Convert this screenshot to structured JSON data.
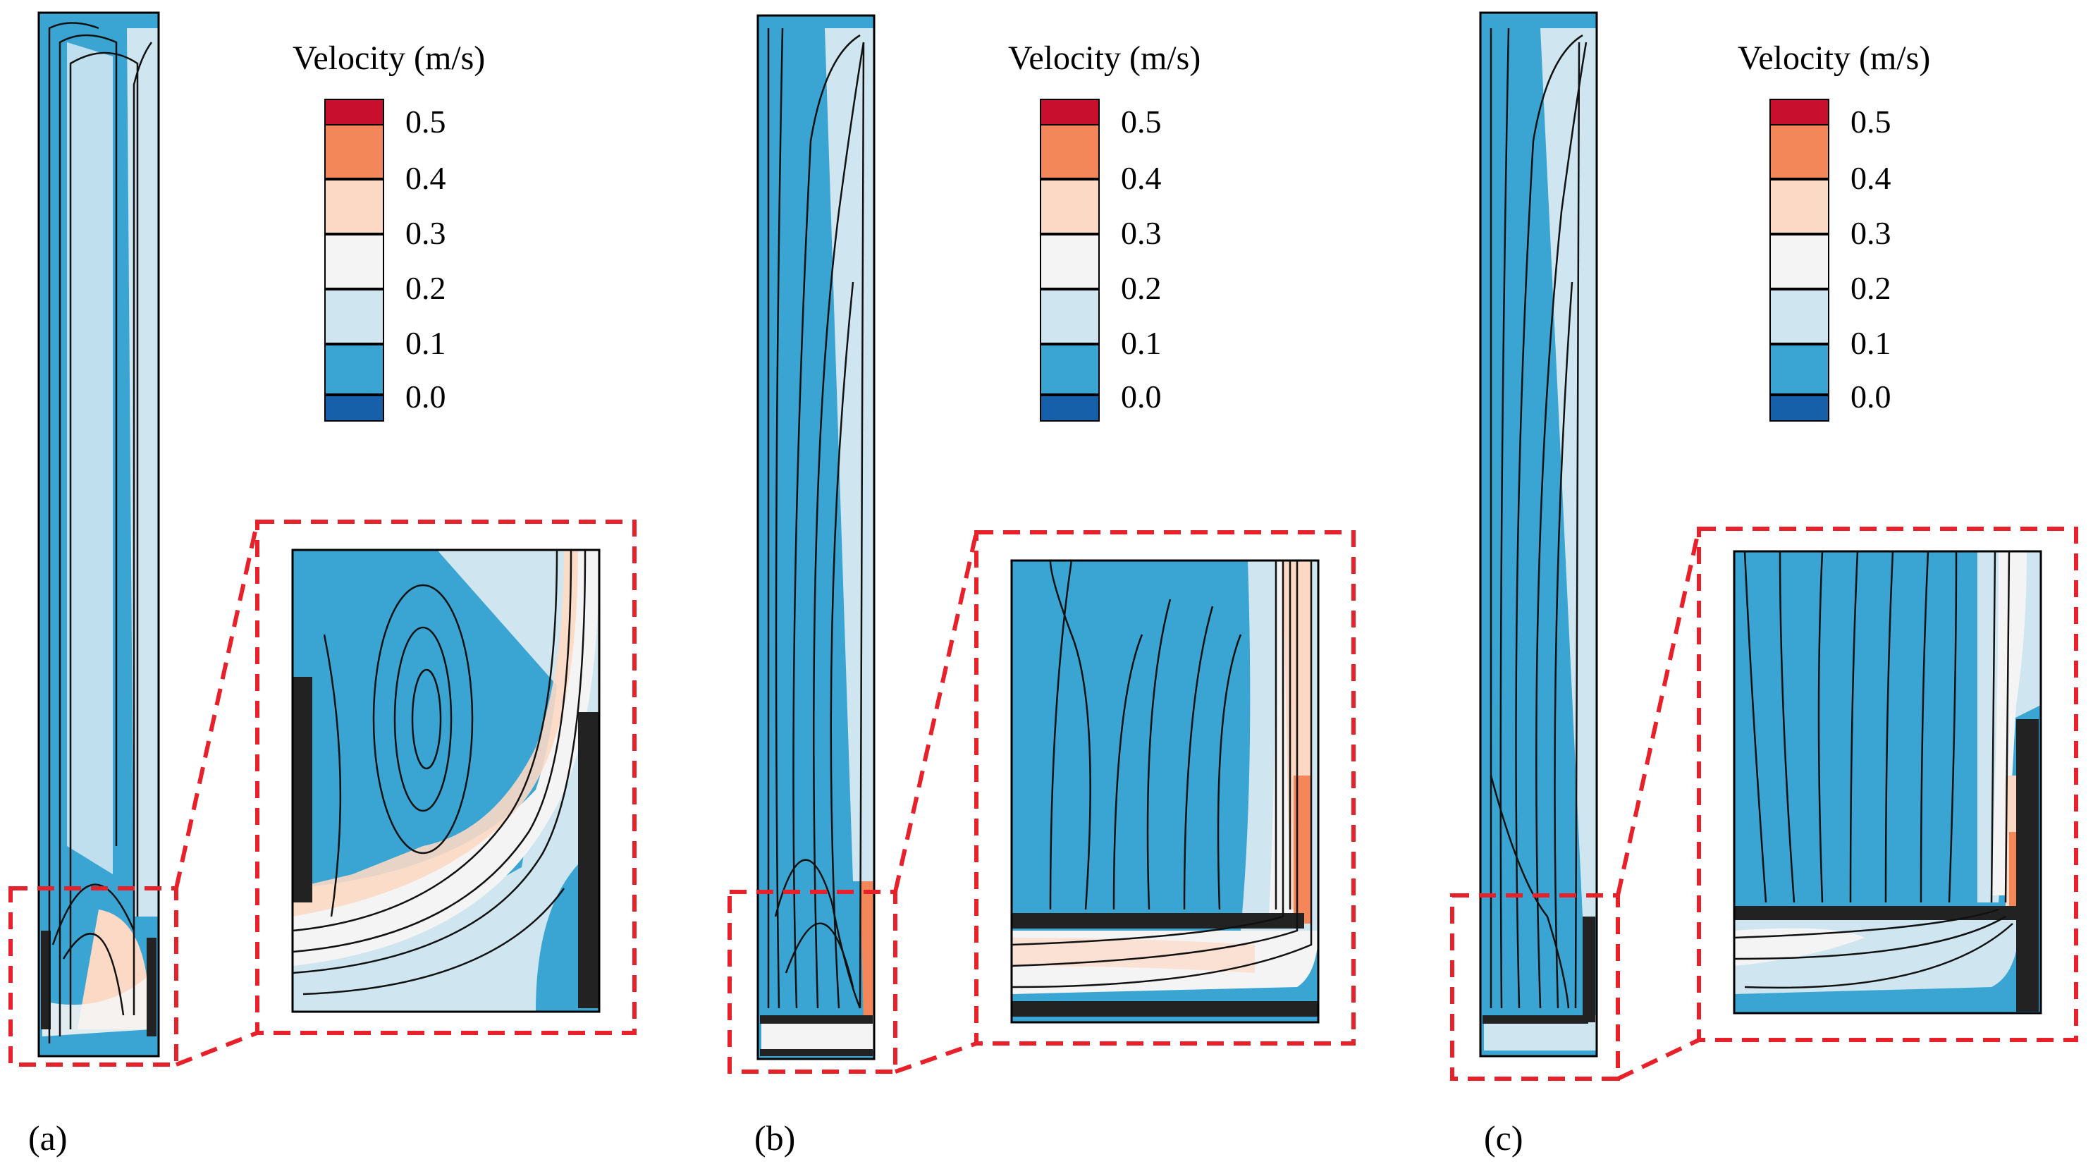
{
  "figure": {
    "panels": [
      {
        "id": "a",
        "label": "(a)"
      },
      {
        "id": "b",
        "label": "(b)"
      },
      {
        "id": "c",
        "label": "(c)"
      }
    ],
    "legend": {
      "title": "Velocity (m/s)",
      "entries": [
        {
          "value": "0.5",
          "color": "#c8102e"
        },
        {
          "value": "0.4",
          "color": "#f4875a"
        },
        {
          "value": "0.3",
          "color": "#fcd9c4"
        },
        {
          "value": "0.2",
          "color": "#f4f4f4"
        },
        {
          "value": "0.1",
          "color": "#cfe6f1"
        },
        {
          "value": "0.0",
          "color": "#3aa5d3"
        }
      ],
      "bottom_color": "#1560a8"
    },
    "colors": {
      "low_velocity": "#3aa5d3",
      "mid_velocity": "#cfe6f1",
      "high_velocity": "#fcd9c4",
      "peak_velocity": "#f4875a",
      "zoom_box": "#e8202a",
      "streamline": "#111111",
      "porous": "#222222"
    }
  }
}
